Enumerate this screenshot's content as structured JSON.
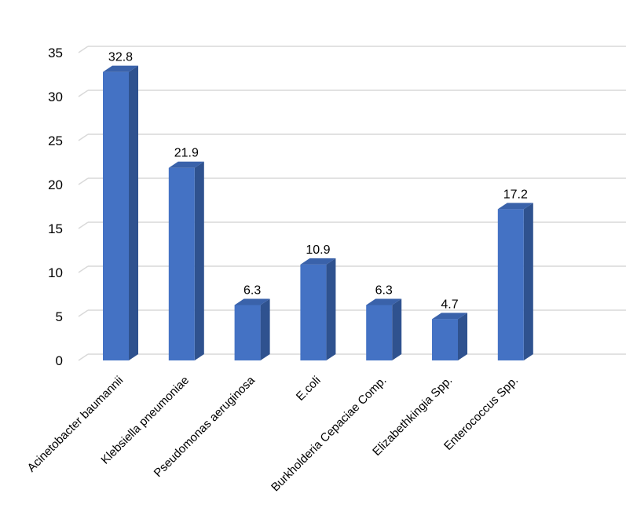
{
  "chart_data": {
    "type": "bar",
    "style": "3d-column",
    "categories": [
      "Acinetobacter baumannii",
      "Klebsiella pneumoniae",
      "Pseudomonas aeruginosa",
      "E.coli",
      "Burkholderia Cepaciae Comp.",
      "Elizabethkingia Spp.",
      "Enterococcus Spp."
    ],
    "values": [
      32.8,
      21.9,
      6.3,
      10.9,
      6.3,
      4.7,
      17.2
    ],
    "data_labels": [
      "32.8",
      "21.9",
      "6.3",
      "10.9",
      "6.3",
      "4.7",
      "17.2"
    ],
    "yticks": [
      "0",
      "5",
      "10",
      "15",
      "20",
      "25",
      "30",
      "35"
    ],
    "ylim": [
      0,
      35
    ],
    "grid": true,
    "legend": "none",
    "colors": {
      "bar_front": "#4472c4",
      "bar_side": "#2f528f",
      "bar_top": "#3a62aa",
      "grid": "#d9d9d9"
    }
  }
}
